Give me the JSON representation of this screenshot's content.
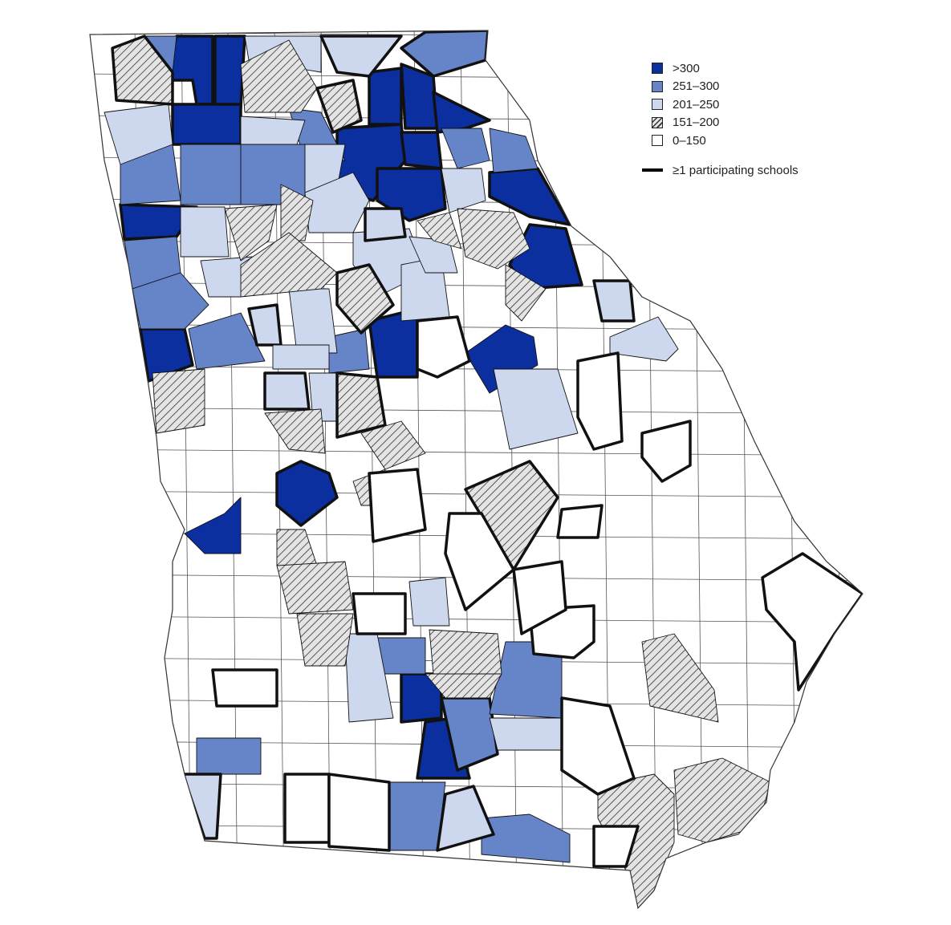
{
  "legend": {
    "items": [
      {
        "label": ">300",
        "fill": "#0b2f9f",
        "pattern": false
      },
      {
        "label": "251–300",
        "fill": "#6684c8",
        "pattern": false
      },
      {
        "label": "201–250",
        "fill": "#cdd8ee",
        "pattern": false
      },
      {
        "label": "151–200",
        "fill": "hatch",
        "pattern": true
      },
      {
        "label": "0–150",
        "fill": "#ffffff",
        "pattern": false
      }
    ],
    "participating_label": "≥1 participating schools"
  }
}
